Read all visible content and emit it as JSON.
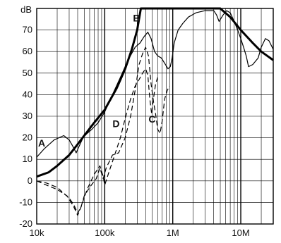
{
  "chart_data": {
    "type": "line",
    "title": "",
    "xlabel": "",
    "ylabel": "",
    "y_unit_label": "dB",
    "x_scale": "log",
    "xlim": [
      10000,
      30000000
    ],
    "ylim": [
      -20,
      80
    ],
    "grid": true,
    "x_ticks": [
      {
        "value": 10000,
        "label": "10k"
      },
      {
        "value": 100000,
        "label": "100k"
      },
      {
        "value": 1000000,
        "label": "1M"
      },
      {
        "value": 10000000,
        "label": "10M"
      }
    ],
    "y_ticks": [
      {
        "value": 70,
        "label": "70"
      },
      {
        "value": 60,
        "label": "60"
      },
      {
        "value": 50,
        "label": "50"
      },
      {
        "value": 40,
        "label": "40"
      },
      {
        "value": 30,
        "label": "30"
      },
      {
        "value": 20,
        "label": "20"
      },
      {
        "value": 10,
        "label": "10"
      },
      {
        "value": 0,
        "label": "0"
      },
      {
        "value": -10,
        "label": "-10"
      },
      {
        "value": -20,
        "label": "-20"
      }
    ],
    "series": [
      {
        "name": "A",
        "style": "solid",
        "weight": "thin",
        "label_at": [
          10500,
          16
        ],
        "points": [
          [
            10000,
            11
          ],
          [
            13000,
            15
          ],
          [
            18000,
            19
          ],
          [
            25000,
            21
          ],
          [
            30000,
            19
          ],
          [
            34000,
            16
          ],
          [
            38000,
            13
          ],
          [
            42000,
            16
          ],
          [
            48000,
            20
          ],
          [
            55000,
            22
          ],
          [
            65000,
            24
          ],
          [
            80000,
            27
          ],
          [
            100000,
            32
          ],
          [
            130000,
            40
          ],
          [
            170000,
            48
          ],
          [
            220000,
            56
          ],
          [
            280000,
            62
          ],
          [
            330000,
            64
          ],
          [
            380000,
            67
          ],
          [
            430000,
            69
          ],
          [
            480000,
            66
          ],
          [
            540000,
            60
          ],
          [
            600000,
            58
          ],
          [
            680000,
            57
          ],
          [
            780000,
            54
          ],
          [
            850000,
            52
          ],
          [
            920000,
            53
          ],
          [
            980000,
            57
          ],
          [
            1050000,
            64
          ],
          [
            1200000,
            70
          ],
          [
            1400000,
            73
          ],
          [
            1700000,
            76
          ],
          [
            2200000,
            78
          ],
          [
            3000000,
            79
          ],
          [
            4000000,
            79
          ],
          [
            4400000,
            77
          ],
          [
            4800000,
            74
          ],
          [
            5500000,
            77
          ],
          [
            6200000,
            79
          ],
          [
            7000000,
            78
          ],
          [
            8000000,
            74
          ],
          [
            9000000,
            70
          ],
          [
            10000000,
            66
          ],
          [
            11000000,
            62
          ],
          [
            12000000,
            58
          ],
          [
            13000000,
            53
          ],
          [
            15000000,
            54
          ],
          [
            18000000,
            57
          ],
          [
            20000000,
            62
          ],
          [
            23000000,
            66
          ],
          [
            26000000,
            65
          ],
          [
            30000000,
            61
          ]
        ]
      },
      {
        "name": "B",
        "style": "solid",
        "weight": "thick",
        "label_at": [
          260000,
          74
        ],
        "points": [
          [
            10000,
            2
          ],
          [
            15000,
            4
          ],
          [
            20000,
            7
          ],
          [
            30000,
            12
          ],
          [
            40000,
            17
          ],
          [
            50000,
            21
          ],
          [
            70000,
            27
          ],
          [
            100000,
            33
          ],
          [
            150000,
            43
          ],
          [
            200000,
            52
          ],
          [
            250000,
            61
          ],
          [
            300000,
            70
          ],
          [
            340000,
            80
          ],
          [
            5000000,
            80
          ],
          [
            7000000,
            76
          ],
          [
            10000000,
            70
          ],
          [
            15000000,
            64
          ],
          [
            20000000,
            60
          ],
          [
            30000000,
            56
          ]
        ]
      },
      {
        "name": "C",
        "style": "dashed",
        "weight": "thin",
        "label_at": [
          440000,
          27
        ],
        "points": [
          [
            10000,
            0
          ],
          [
            14000,
            -1
          ],
          [
            20000,
            -3
          ],
          [
            30000,
            -8
          ],
          [
            35000,
            -11
          ],
          [
            40000,
            -15
          ],
          [
            45000,
            -12
          ],
          [
            50000,
            -7
          ],
          [
            60000,
            -3
          ],
          [
            75000,
            1
          ],
          [
            85000,
            6
          ],
          [
            95000,
            1
          ],
          [
            105000,
            6
          ],
          [
            130000,
            12
          ],
          [
            160000,
            13
          ],
          [
            200000,
            20
          ],
          [
            240000,
            30
          ],
          [
            280000,
            42
          ],
          [
            320000,
            54
          ],
          [
            360000,
            59
          ],
          [
            400000,
            62
          ],
          [
            440000,
            58
          ],
          [
            480000,
            45
          ],
          [
            520000,
            37
          ],
          [
            560000,
            31
          ],
          [
            600000,
            24
          ],
          [
            650000,
            22
          ],
          [
            700000,
            28
          ],
          [
            760000,
            38
          ],
          [
            830000,
            42
          ],
          [
            900000,
            44
          ]
        ]
      },
      {
        "name": "D",
        "style": "dashed",
        "weight": "thin",
        "label_at": [
          130000,
          25
        ],
        "points": [
          [
            10000,
            0
          ],
          [
            14000,
            -2
          ],
          [
            20000,
            -4
          ],
          [
            28000,
            -7
          ],
          [
            35000,
            -12
          ],
          [
            40000,
            -16
          ],
          [
            45000,
            -12
          ],
          [
            55000,
            -4
          ],
          [
            70000,
            3
          ],
          [
            85000,
            7
          ],
          [
            95000,
            2
          ],
          [
            100000,
            -2
          ],
          [
            115000,
            4
          ],
          [
            140000,
            12
          ],
          [
            170000,
            20
          ],
          [
            200000,
            29
          ],
          [
            240000,
            38
          ],
          [
            280000,
            44
          ],
          [
            320000,
            47
          ],
          [
            360000,
            50
          ],
          [
            400000,
            52
          ],
          [
            430000,
            49
          ],
          [
            460000,
            38
          ],
          [
            490000,
            31
          ],
          [
            520000,
            38
          ],
          [
            560000,
            45
          ],
          [
            600000,
            48
          ]
        ]
      }
    ]
  }
}
